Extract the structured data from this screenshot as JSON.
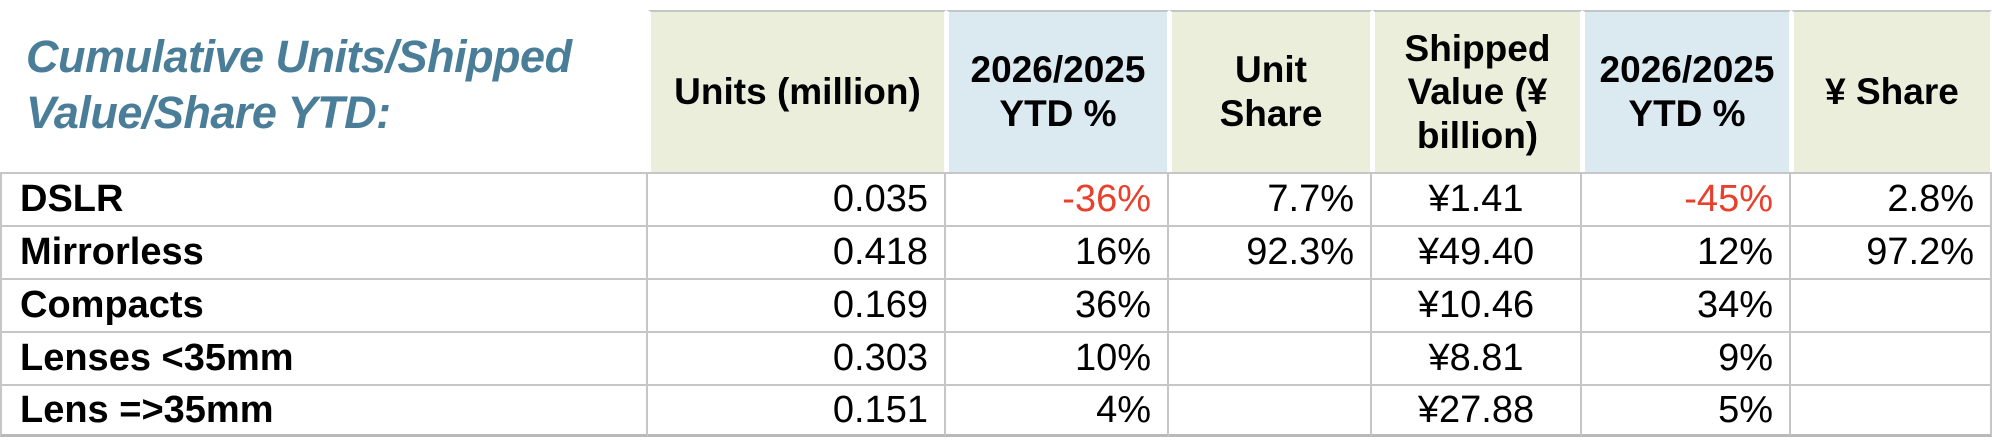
{
  "title": {
    "full": "Cumulative Units/Shipped Value/Share YTD:",
    "line1": "Cumulative Units/Shipped",
    "line2": "Value/Share YTD:"
  },
  "colors": {
    "title": "#4a7e98",
    "header_green": "#ebeeda",
    "header_blue": "#dbe9f1",
    "negative": "#e8402c",
    "grid": "#c6c6c6",
    "border_bottom": "#b9b9b9",
    "header_top_border": "#c2c6c6",
    "text": "#000000",
    "background": "#ffffff"
  },
  "table": {
    "columns": [
      {
        "label": "Units (million)",
        "tint": "green"
      },
      {
        "label": "2026/2025 YTD %",
        "tint": "blue"
      },
      {
        "label": "Unit Share",
        "tint": "green"
      },
      {
        "label": "Shipped Value (¥ billion)",
        "tint": "green"
      },
      {
        "label": "2026/2025 YTD %",
        "tint": "blue"
      },
      {
        "label": "¥ Share",
        "tint": "green"
      }
    ],
    "rows": [
      {
        "label": "DSLR",
        "cells": [
          "0.035",
          "-36%",
          "7.7%",
          "¥1.41",
          "-45%",
          "2.8%"
        ]
      },
      {
        "label": "Mirrorless",
        "cells": [
          "0.418",
          "16%",
          "92.3%",
          "¥49.40",
          "12%",
          "97.2%"
        ]
      },
      {
        "label": "Compacts",
        "cells": [
          "0.169",
          "36%",
          "",
          "¥10.46",
          "34%",
          ""
        ]
      },
      {
        "label": "Lenses <35mm",
        "cells": [
          "0.303",
          "10%",
          "",
          "¥8.81",
          "9%",
          ""
        ]
      },
      {
        "label": "Lens =>35mm",
        "cells": [
          "0.151",
          "4%",
          "",
          "¥27.88",
          "5%",
          ""
        ]
      }
    ]
  },
  "chart_data": {
    "type": "table",
    "title": "Cumulative Units/Shipped Value/Share YTD:",
    "columns": [
      "Units (million)",
      "2026/2025 YTD %",
      "Unit Share",
      "Shipped Value (¥ billion)",
      "2026/2025 YTD %",
      "¥ Share"
    ],
    "rows": [
      {
        "label": "DSLR",
        "units_million": 0.035,
        "units_ytd_pct": -36,
        "unit_share_pct": 7.7,
        "shipped_value_yen_billion": 1.41,
        "value_ytd_pct": -45,
        "yen_share_pct": 2.8
      },
      {
        "label": "Mirrorless",
        "units_million": 0.418,
        "units_ytd_pct": 16,
        "unit_share_pct": 92.3,
        "shipped_value_yen_billion": 49.4,
        "value_ytd_pct": 12,
        "yen_share_pct": 97.2
      },
      {
        "label": "Compacts",
        "units_million": 0.169,
        "units_ytd_pct": 36,
        "unit_share_pct": null,
        "shipped_value_yen_billion": 10.46,
        "value_ytd_pct": 34,
        "yen_share_pct": null
      },
      {
        "label": "Lenses <35mm",
        "units_million": 0.303,
        "units_ytd_pct": 10,
        "unit_share_pct": null,
        "shipped_value_yen_billion": 8.81,
        "value_ytd_pct": 9,
        "yen_share_pct": null
      },
      {
        "label": "Lens =>35mm",
        "units_million": 0.151,
        "units_ytd_pct": 4,
        "unit_share_pct": null,
        "shipped_value_yen_billion": 27.88,
        "value_ytd_pct": 5,
        "yen_share_pct": null
      }
    ],
    "notes": "Negative YTD percentages rendered in red; ¥ value column centered; other numeric columns right-aligned."
  }
}
